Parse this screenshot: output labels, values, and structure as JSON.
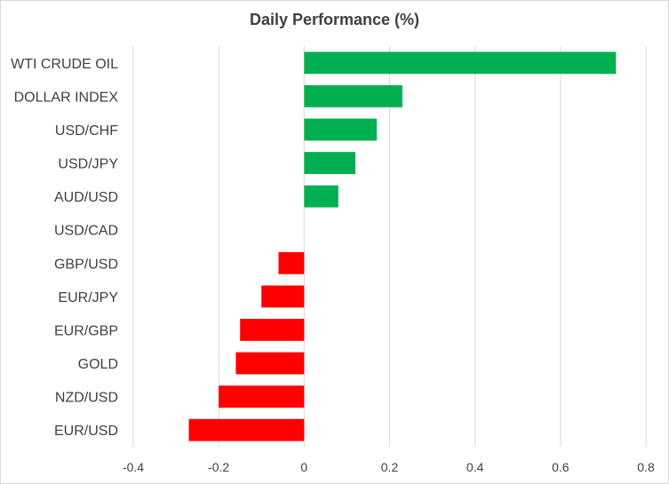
{
  "chart_data": {
    "type": "bar",
    "orientation": "horizontal",
    "title": "Daily Performance  (%)",
    "xlabel": "",
    "ylabel": "",
    "categories": [
      "WTI CRUDE OIL",
      "DOLLAR INDEX",
      "USD/CHF",
      "USD/JPY",
      "AUD/USD",
      "USD/CAD",
      "GBP/USD",
      "EUR/JPY",
      "EUR/GBP",
      "GOLD",
      "NZD/USD",
      "EUR/USD"
    ],
    "values": [
      0.73,
      0.23,
      0.17,
      0.12,
      0.08,
      0.0,
      -0.06,
      -0.1,
      -0.15,
      -0.16,
      -0.2,
      -0.27
    ],
    "xlim": [
      -0.4,
      0.8
    ],
    "xticks": [
      "-0.4",
      "-0.2",
      "0",
      "0.2",
      "0.4",
      "0.6",
      "0.8"
    ],
    "grid": "vertical",
    "legend": "none",
    "colors": {
      "positive": "#00b050",
      "negative": "#ff0000",
      "grid": "#d9d9d9",
      "text": "#404040"
    }
  }
}
